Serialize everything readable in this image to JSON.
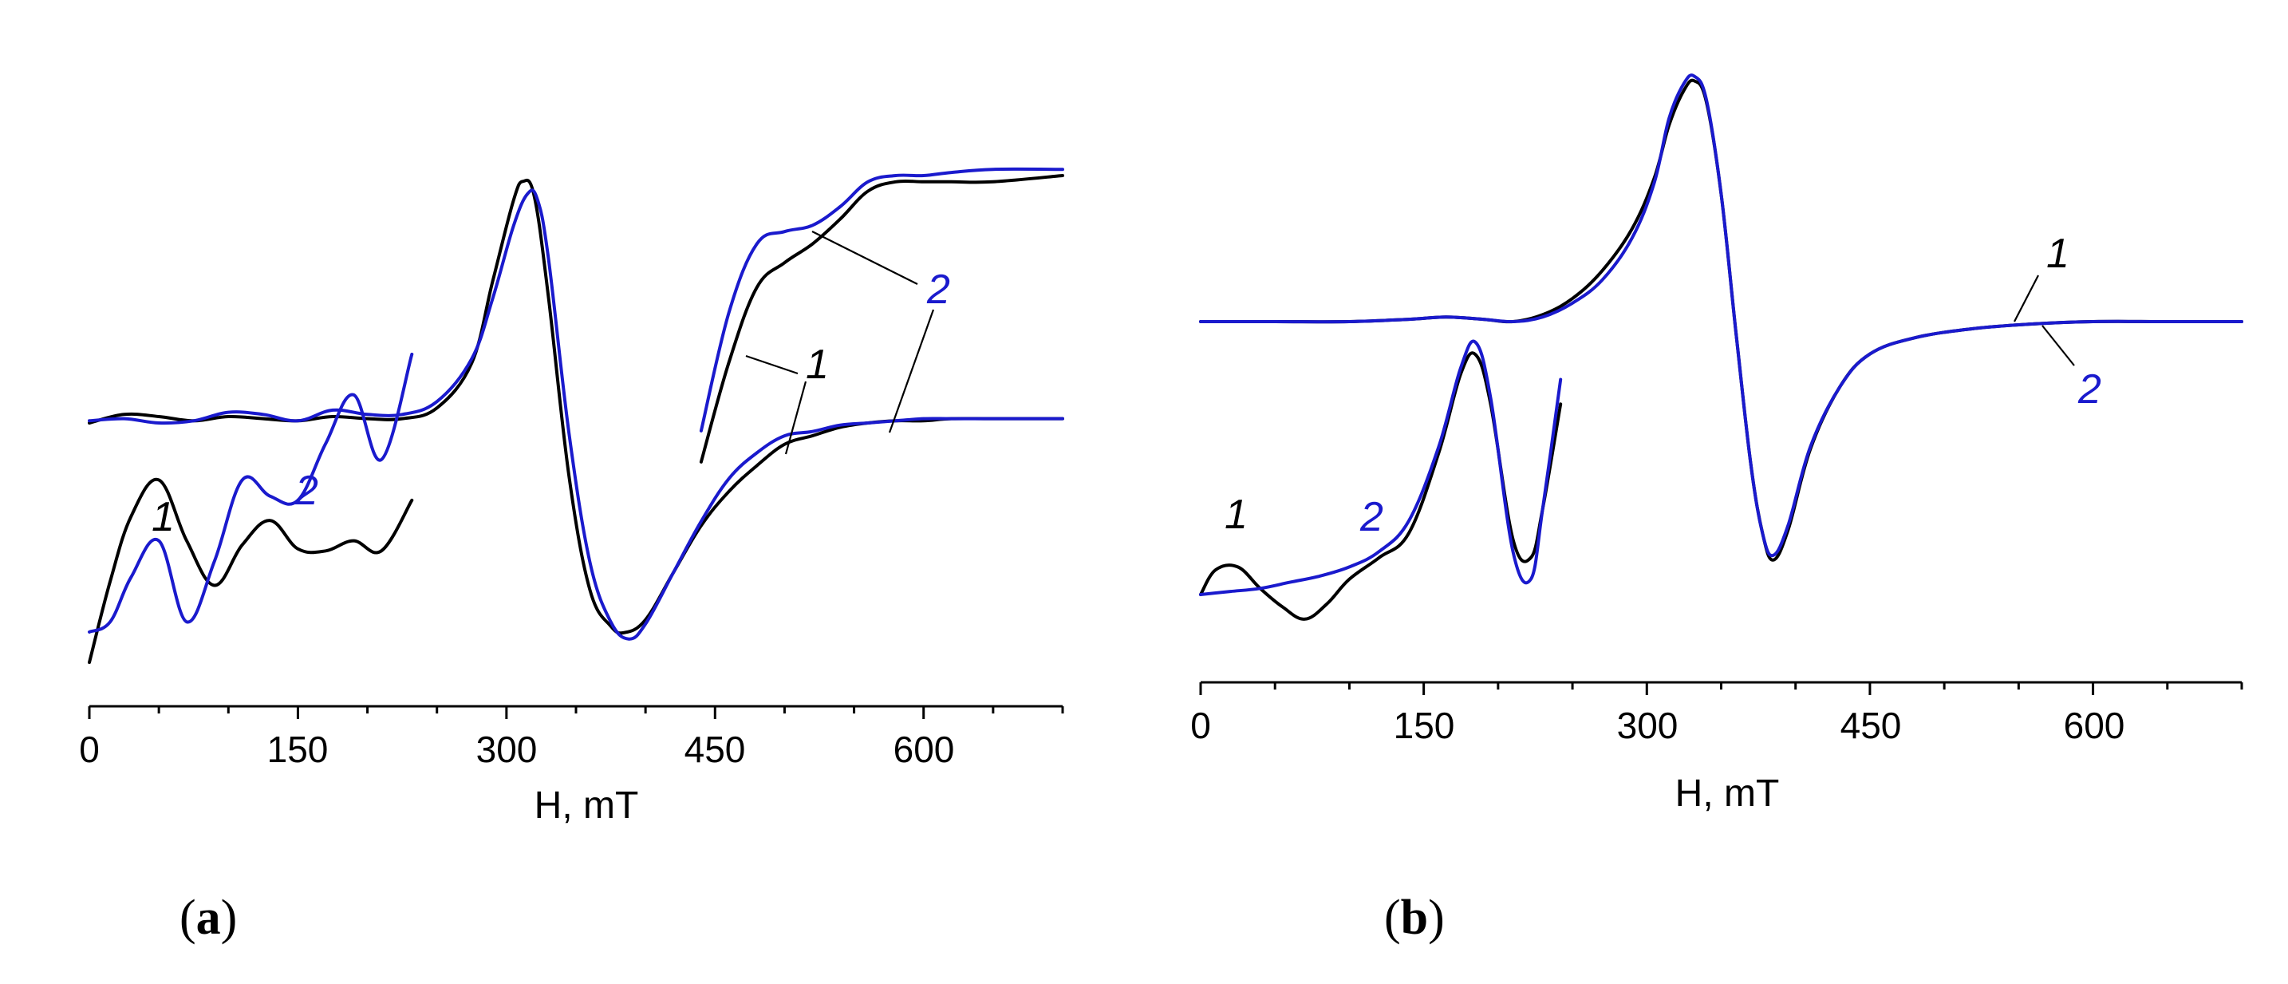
{
  "figure": {
    "panel_a_label": {
      "open": "(",
      "letter": "a",
      "close": ")"
    },
    "panel_b_label": {
      "open": "(",
      "letter": "b",
      "close": ")"
    }
  },
  "colors": {
    "curve1": "#000000",
    "curve2": "#1a1acd",
    "axis": "#000000"
  },
  "chart_data": [
    {
      "id": "a",
      "type": "line",
      "title": "",
      "xlabel": "H, mT",
      "ylabel": "",
      "xlim": [
        0,
        700
      ],
      "xticks": [
        0,
        150,
        300,
        450,
        600
      ],
      "ylim": [
        -1,
        1
      ],
      "legend": "curve numbers placed next to traces",
      "series": [
        {
          "name": "1",
          "role": "main",
          "x": [
            0,
            25,
            50,
            75,
            100,
            125,
            150,
            175,
            200,
            225,
            250,
            275,
            290,
            305,
            312,
            320,
            330,
            345,
            360,
            375,
            385,
            400,
            420,
            440,
            460,
            480,
            500,
            520,
            540,
            560,
            580,
            600,
            620,
            650,
            700
          ],
          "y": [
            0.0,
            0.04,
            0.03,
            0.01,
            0.03,
            0.02,
            0.01,
            0.03,
            0.02,
            0.02,
            0.07,
            0.28,
            0.66,
            1.04,
            1.13,
            1.06,
            0.6,
            -0.25,
            -0.78,
            -0.95,
            -0.98,
            -0.92,
            -0.7,
            -0.48,
            -0.32,
            -0.2,
            -0.1,
            -0.06,
            -0.02,
            0.0,
            0.01,
            0.01,
            0.02,
            0.02,
            0.02
          ]
        },
        {
          "name": "2",
          "role": "main",
          "x": [
            0,
            25,
            50,
            75,
            100,
            125,
            150,
            175,
            200,
            225,
            250,
            275,
            290,
            305,
            315,
            322,
            330,
            345,
            360,
            375,
            388,
            400,
            420,
            440,
            460,
            480,
            500,
            520,
            540,
            560,
            580,
            600,
            620,
            650,
            700
          ],
          "y": [
            0.01,
            0.02,
            0.0,
            0.01,
            0.05,
            0.04,
            0.01,
            0.06,
            0.04,
            0.04,
            0.1,
            0.3,
            0.58,
            0.92,
            1.07,
            1.05,
            0.78,
            -0.05,
            -0.65,
            -0.93,
            -1.01,
            -0.94,
            -0.7,
            -0.46,
            -0.26,
            -0.14,
            -0.06,
            -0.04,
            -0.01,
            0.0,
            0.01,
            0.02,
            0.02,
            0.02,
            0.02
          ]
        },
        {
          "name": "1",
          "role": "inset-low-field",
          "x": [
            0,
            15,
            30,
            50,
            70,
            90,
            110,
            130,
            150,
            170,
            190,
            210,
            232
          ],
          "y": [
            0.0,
            0.4,
            0.72,
            0.9,
            0.6,
            0.38,
            0.58,
            0.7,
            0.56,
            0.55,
            0.6,
            0.55,
            0.8
          ]
        },
        {
          "name": "2",
          "role": "inset-low-field",
          "x": [
            0,
            15,
            30,
            50,
            70,
            90,
            110,
            130,
            150,
            170,
            190,
            210,
            232
          ],
          "y": [
            0.15,
            0.2,
            0.42,
            0.6,
            0.2,
            0.5,
            0.9,
            0.82,
            0.8,
            1.08,
            1.32,
            1.0,
            1.52
          ]
        },
        {
          "name": "1",
          "role": "inset-high-field",
          "x": [
            440,
            460,
            480,
            500,
            520,
            540,
            560,
            580,
            600,
            620,
            650,
            700
          ],
          "y": [
            0.08,
            0.4,
            0.64,
            0.72,
            0.78,
            0.86,
            0.95,
            0.98,
            0.98,
            0.98,
            0.98,
            1.0
          ]
        },
        {
          "name": "2",
          "role": "inset-high-field",
          "x": [
            440,
            460,
            480,
            500,
            520,
            540,
            560,
            580,
            600,
            620,
            650,
            700
          ],
          "y": [
            0.18,
            0.56,
            0.78,
            0.82,
            0.84,
            0.9,
            0.98,
            1.0,
            1.0,
            1.01,
            1.02,
            1.02
          ]
        }
      ],
      "annotations": [
        "1",
        "2",
        "1",
        "2"
      ]
    },
    {
      "id": "b",
      "type": "line",
      "title": "",
      "xlabel": "H, mT",
      "ylabel": "",
      "xlim": [
        0,
        700
      ],
      "xticks": [
        0,
        150,
        300,
        450,
        600
      ],
      "ylim": [
        -1,
        1
      ],
      "legend": "curve numbers placed next to traces",
      "series": [
        {
          "name": "1",
          "role": "main",
          "x": [
            0,
            50,
            100,
            140,
            165,
            190,
            210,
            230,
            250,
            270,
            290,
            305,
            315,
            325,
            332,
            340,
            350,
            360,
            370,
            378,
            385,
            395,
            410,
            430,
            450,
            480,
            520,
            560,
            600,
            650,
            700
          ],
          "y": [
            0.0,
            0.0,
            0.0,
            0.01,
            0.02,
            0.01,
            0.0,
            0.03,
            0.1,
            0.22,
            0.4,
            0.62,
            0.85,
            1.0,
            1.04,
            0.95,
            0.55,
            -0.05,
            -0.62,
            -0.92,
            -1.03,
            -0.9,
            -0.55,
            -0.28,
            -0.14,
            -0.07,
            -0.03,
            -0.01,
            0.0,
            0.0,
            0.0
          ]
        },
        {
          "name": "2",
          "role": "main",
          "x": [
            0,
            50,
            100,
            140,
            165,
            190,
            210,
            230,
            250,
            270,
            290,
            305,
            315,
            325,
            332,
            340,
            350,
            360,
            370,
            378,
            385,
            395,
            410,
            430,
            450,
            480,
            520,
            560,
            600,
            650,
            700
          ],
          "y": [
            0.0,
            0.0,
            0.0,
            0.01,
            0.02,
            0.01,
            0.0,
            0.02,
            0.08,
            0.18,
            0.36,
            0.6,
            0.88,
            1.03,
            1.06,
            0.96,
            0.55,
            -0.05,
            -0.62,
            -0.92,
            -1.01,
            -0.88,
            -0.54,
            -0.28,
            -0.14,
            -0.07,
            -0.03,
            -0.01,
            0.0,
            0.0,
            0.0
          ]
        },
        {
          "name": "1",
          "role": "inset-low-field",
          "x": [
            0,
            10,
            25,
            40,
            55,
            70,
            85,
            100,
            120,
            140,
            160,
            175,
            185,
            195,
            210,
            222,
            230,
            242
          ],
          "y": [
            0.0,
            0.08,
            0.09,
            0.02,
            -0.04,
            -0.08,
            -0.03,
            0.05,
            0.12,
            0.2,
            0.46,
            0.72,
            0.78,
            0.62,
            0.18,
            0.12,
            0.28,
            0.62
          ]
        },
        {
          "name": "2",
          "role": "inset-low-field",
          "x": [
            0,
            20,
            40,
            60,
            80,
            100,
            120,
            140,
            160,
            175,
            185,
            195,
            210,
            222,
            230,
            242
          ],
          "y": [
            0.0,
            0.01,
            0.02,
            0.04,
            0.06,
            0.09,
            0.14,
            0.24,
            0.48,
            0.74,
            0.82,
            0.64,
            0.14,
            0.05,
            0.28,
            0.7
          ]
        }
      ],
      "annotations": [
        "1",
        "2",
        "1",
        "2"
      ]
    }
  ]
}
